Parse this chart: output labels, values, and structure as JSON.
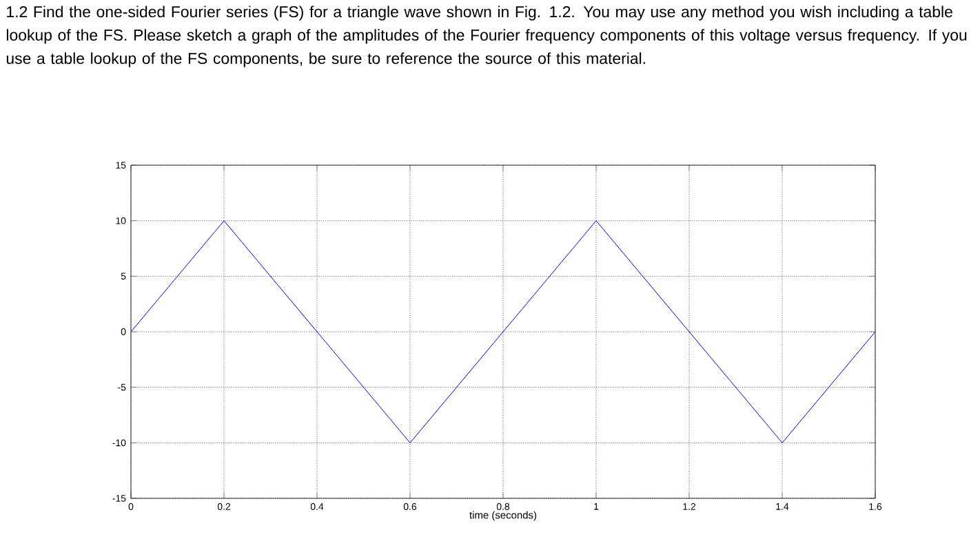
{
  "chart_data": {
    "type": "line",
    "title": "1.2 Find the one-sided Fourier series (FS) for a triangle wave shown in Fig. 1.2. You may use any method you wish including a table lookup of the FS. Please sketch a graph of the amplitudes of the Fourier frequency components of this voltage versus frequency. If you use a table lookup of the FS components, be sure to reference the source of this material.",
    "xlabel": "time (seconds)",
    "x": [
      0,
      0.2,
      0.6,
      1.0,
      1.4,
      1.6
    ],
    "series": [
      {
        "color": "#0000ff",
        "values": [
          0,
          10,
          -10,
          10,
          -10,
          0
        ]
      }
    ],
    "xlim": [
      0,
      1.6
    ],
    "ylim": [
      -15,
      15
    ],
    "xticks": [
      0,
      0.2,
      0.4,
      0.6,
      0.8,
      1,
      1.2,
      1.4,
      1.6
    ],
    "yticks": [
      -15,
      -10,
      -5,
      0,
      5,
      10,
      15
    ],
    "grid": true,
    "marker": "none",
    "line_style": "solid"
  }
}
